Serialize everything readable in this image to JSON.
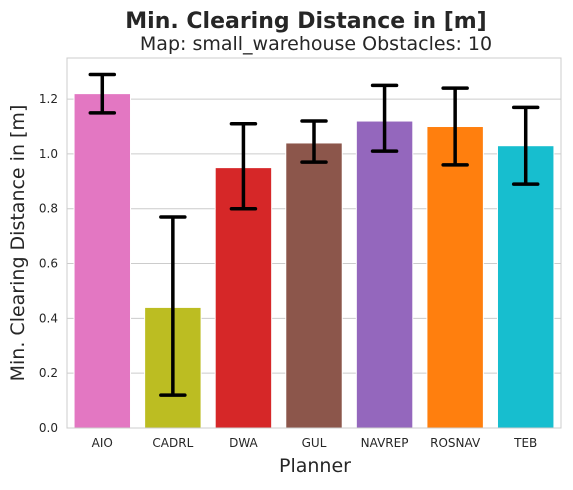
{
  "chart_data": {
    "type": "bar",
    "title": "Min. Clearing Distance in [m]",
    "subtitle": "Map: small_warehouse Obstacles: 10",
    "xlabel": "Planner",
    "ylabel": "Min. Clearing Distance in [m]",
    "categories": [
      "AIO",
      "CADRL",
      "DWA",
      "GUL",
      "NAVREP",
      "ROSNAV",
      "TEB"
    ],
    "values": [
      1.22,
      0.44,
      0.95,
      1.04,
      1.12,
      1.1,
      1.03
    ],
    "error_low": [
      1.15,
      0.12,
      0.8,
      0.97,
      1.01,
      0.96,
      0.89
    ],
    "error_high": [
      1.29,
      0.77,
      1.11,
      1.12,
      1.25,
      1.24,
      1.17
    ],
    "colors": [
      "#e377c2",
      "#bcbd22",
      "#d62728",
      "#8c564b",
      "#9467bd",
      "#ff7f0e",
      "#17becf"
    ],
    "yticks": [
      "0.0",
      "0.2",
      "0.4",
      "0.6",
      "0.8",
      "1.0",
      "1.2"
    ],
    "ylim": [
      0,
      1.35
    ],
    "grid": true,
    "legend": "none"
  }
}
